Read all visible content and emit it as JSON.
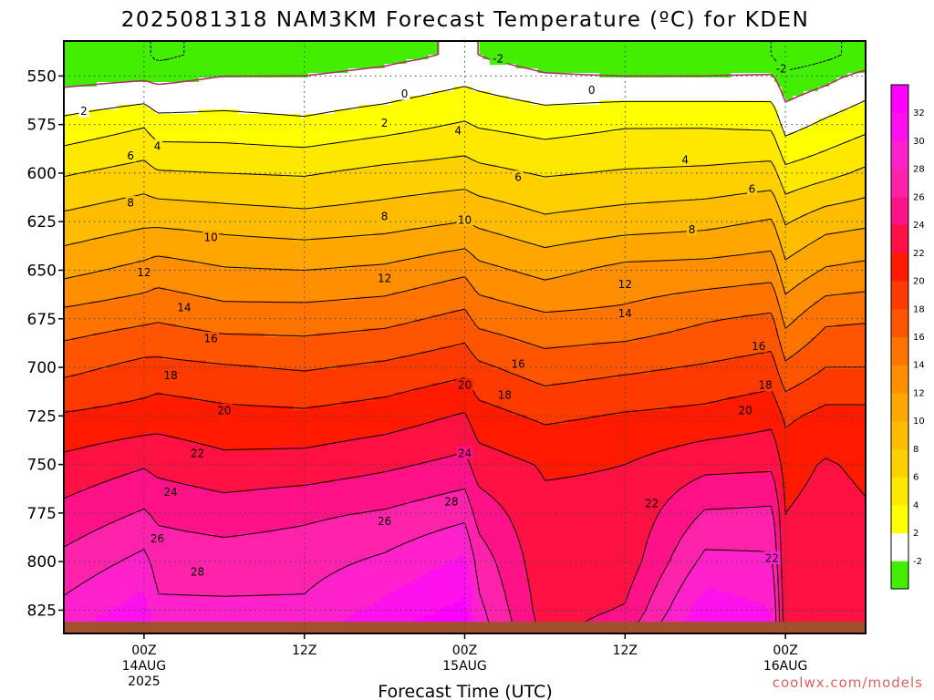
{
  "chart_data": {
    "type": "heatmap",
    "title": "2025081318 NAM3KM Forecast Temperature (ºC) for KDEN",
    "xlabel": "Forecast Time (UTC)",
    "ylabel": "",
    "credit": "coolwx.com/models",
    "x_ticks": [
      {
        "t": 6,
        "lines": [
          "00Z",
          "14AUG",
          "2025"
        ]
      },
      {
        "t": 18,
        "lines": [
          "12Z"
        ]
      },
      {
        "t": 30,
        "lines": [
          "00Z",
          "15AUG"
        ]
      },
      {
        "t": 42,
        "lines": [
          "12Z"
        ]
      },
      {
        "t": 54,
        "lines": [
          "00Z",
          "16AUG"
        ]
      }
    ],
    "xlim": [
      0,
      60
    ],
    "y_ticks": [
      "550",
      "575",
      "600",
      "625",
      "650",
      "675",
      "700",
      "725",
      "750",
      "775",
      "800",
      "825"
    ],
    "ylim": [
      837,
      532
    ],
    "y_unit": "hPa",
    "colorbar": {
      "ticks": [
        "-2",
        "2",
        "4",
        "6",
        "8",
        "10",
        "12",
        "14",
        "16",
        "18",
        "20",
        "22",
        "24",
        "26",
        "28",
        "30",
        "32"
      ],
      "levels": [
        -4,
        0,
        2,
        4,
        6,
        8,
        10,
        12,
        14,
        16,
        18,
        20,
        22,
        24,
        26,
        28,
        30,
        32,
        34
      ],
      "colors": [
        "#44ee00",
        "#ffffff",
        "#ffff00",
        "#ffe800",
        "#ffd000",
        "#ffbc00",
        "#ffa600",
        "#ff8e00",
        "#ff7400",
        "#ff5500",
        "#ff3a00",
        "#ff1a00",
        "#ff1144",
        "#ff1188",
        "#ff22aa",
        "#ff22cc",
        "#ff11ee",
        "#ff00ff"
      ]
    },
    "profiles": {
      "description_units": "temperature in degC at each pressure level",
      "pressure_levels": [
        540,
        550,
        575,
        600,
        625,
        650,
        675,
        700,
        725,
        750,
        775,
        800,
        825,
        837
      ],
      "series": [
        {
          "t": 0,
          "temps": [
            -1.8,
            -0.8,
            2.6,
            5.8,
            8.6,
            11.4,
            14.8,
            17.4,
            20.2,
            22.6,
            24.6,
            26.6,
            28.6,
            29.6
          ]
        },
        {
          "t": 6,
          "temps": [
            -1.6,
            -0.4,
            3.8,
            6.8,
            9.6,
            12.6,
            15.6,
            18.6,
            20.8,
            23.8,
            26.2,
            28.6,
            31.0,
            32.4
          ]
        },
        {
          "t": 7,
          "temps": [
            -2.4,
            -0.6,
            2.8,
            6.2,
            9.6,
            13.0,
            15.8,
            18.6,
            21.2,
            23.4,
            25.6,
            27.2,
            28.4,
            29.2
          ]
        },
        {
          "t": 12,
          "temps": [
            -1.4,
            0.0,
            2.8,
            6.0,
            9.2,
            12.2,
            15.0,
            18.2,
            20.6,
            22.6,
            25.0,
            27.0,
            28.4,
            29.0
          ]
        },
        {
          "t": 18,
          "temps": [
            -0.8,
            0.0,
            2.4,
            5.8,
            8.8,
            12.0,
            15.0,
            17.8,
            20.4,
            22.8,
            25.6,
            27.2,
            28.4,
            29.4
          ]
        },
        {
          "t": 24,
          "temps": [
            -0.4,
            0.4,
            3.2,
            6.6,
            9.2,
            12.4,
            15.4,
            18.4,
            21.0,
            23.6,
            26.2,
            28.4,
            30.6,
            32.0
          ]
        },
        {
          "t": 30,
          "temps": [
            0.2,
            1.4,
            4.2,
            7.0,
            10.0,
            13.6,
            16.6,
            19.4,
            22.2,
            24.6,
            27.4,
            30.4,
            32.6,
            33.6
          ]
        },
        {
          "t": 31,
          "temps": [
            0.0,
            1.2,
            3.8,
            6.6,
            9.6,
            12.6,
            15.4,
            18.4,
            20.8,
            23.0,
            25.2,
            27.2,
            28.6,
            29.2
          ]
        },
        {
          "t": 36,
          "temps": [
            -1.0,
            0.2,
            3.2,
            5.8,
            8.4,
            11.4,
            14.4,
            17.0,
            19.6,
            21.8,
            22.4,
            22.6,
            23.0,
            23.4
          ]
        },
        {
          "t": 42,
          "temps": [
            -1.6,
            0.0,
            3.8,
            6.2,
            9.0,
            12.6,
            14.6,
            17.6,
            20.2,
            22.0,
            22.4,
            22.8,
            24.2,
            25.4
          ]
        },
        {
          "t": 48,
          "temps": [
            -1.4,
            0.0,
            3.8,
            6.4,
            9.4,
            12.8,
            15.8,
            18.2,
            20.6,
            23.4,
            26.2,
            28.6,
            31.2,
            32.6
          ]
        },
        {
          "t": 53,
          "temps": [
            -2.0,
            0.2,
            3.6,
            6.8,
            10.2,
            13.2,
            16.4,
            18.8,
            21.4,
            23.6,
            26.4,
            28.4,
            30.0,
            30.4
          ]
        },
        {
          "t": 54,
          "temps": [
            -3.6,
            -1.4,
            1.2,
            4.6,
            7.8,
            10.6,
            13.4,
            16.4,
            19.6,
            21.2,
            22.0,
            22.0,
            22.6,
            23.0
          ]
        },
        {
          "t": 57,
          "temps": [
            -2.4,
            -0.6,
            2.4,
            5.4,
            9.2,
            12.2,
            15.6,
            18.0,
            20.6,
            22.2,
            22.8,
            22.6,
            23.2,
            23.6
          ]
        },
        {
          "t": 60,
          "temps": [
            -1.4,
            0.6,
            3.4,
            6.4,
            9.6,
            12.6,
            15.8,
            18.0,
            20.6,
            21.6,
            22.2,
            22.4,
            23.2,
            23.8
          ]
        }
      ]
    },
    "contour_levels": [
      -2,
      0,
      2,
      4,
      6,
      8,
      10,
      12,
      14,
      16,
      18,
      20,
      22,
      24,
      26,
      28
    ],
    "contour_labels": [
      {
        "text": "-2",
        "t": 32.5,
        "p": 541
      },
      {
        "t": 53.7,
        "p": 546,
        "text": "-2"
      },
      {
        "text": "0",
        "t": 25.5,
        "p": 559
      },
      {
        "text": "0",
        "t": 39.5,
        "p": 557
      },
      {
        "text": "2",
        "t": 1.5,
        "p": 568
      },
      {
        "text": "2",
        "t": 24,
        "p": 574
      },
      {
        "text": "4",
        "t": 7,
        "p": 586
      },
      {
        "text": "4",
        "t": 29.5,
        "p": 578
      },
      {
        "text": "4",
        "t": 46.5,
        "p": 593
      },
      {
        "text": "6",
        "t": 5,
        "p": 591
      },
      {
        "text": "6",
        "t": 34,
        "p": 602
      },
      {
        "text": "6",
        "t": 51.5,
        "p": 608
      },
      {
        "text": "8",
        "t": 5,
        "p": 615
      },
      {
        "text": "8",
        "t": 24,
        "p": 622
      },
      {
        "text": "8",
        "t": 47,
        "p": 629
      },
      {
        "text": "10",
        "t": 11,
        "p": 633
      },
      {
        "text": "10",
        "t": 30,
        "p": 624
      },
      {
        "text": "12",
        "t": 6,
        "p": 651
      },
      {
        "text": "12",
        "t": 24,
        "p": 654
      },
      {
        "text": "12",
        "t": 42,
        "p": 657
      },
      {
        "text": "14",
        "t": 9,
        "p": 669
      },
      {
        "text": "14",
        "t": 42,
        "p": 672
      },
      {
        "text": "16",
        "t": 11,
        "p": 685
      },
      {
        "text": "16",
        "t": 34,
        "p": 698
      },
      {
        "text": "16",
        "t": 52,
        "p": 689
      },
      {
        "text": "18",
        "t": 8,
        "p": 704
      },
      {
        "text": "18",
        "t": 33,
        "p": 714
      },
      {
        "text": "18",
        "t": 52.5,
        "p": 709
      },
      {
        "text": "20",
        "t": 12,
        "p": 722
      },
      {
        "text": "20",
        "t": 30,
        "p": 709
      },
      {
        "text": "20",
        "t": 51,
        "p": 722
      },
      {
        "text": "22",
        "t": 10,
        "p": 744
      },
      {
        "text": "22",
        "t": 44,
        "p": 770
      },
      {
        "text": "22",
        "t": 53,
        "p": 798
      },
      {
        "text": "24",
        "t": 8,
        "p": 764
      },
      {
        "text": "24",
        "t": 30,
        "p": 744
      },
      {
        "text": "26",
        "t": 7,
        "p": 788
      },
      {
        "text": "26",
        "t": 24,
        "p": 779
      },
      {
        "text": "28",
        "t": 10,
        "p": 805
      },
      {
        "text": "28",
        "t": 29,
        "p": 769
      }
    ],
    "ground_color": "#a0522d",
    "ground_top_p": 831,
    "grid": true,
    "legend_placement": "right"
  }
}
